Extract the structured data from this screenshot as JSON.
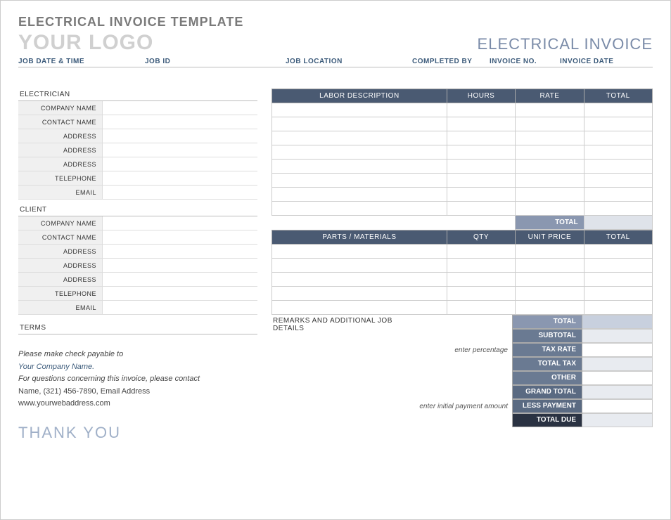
{
  "header_title": "ELECTRICAL INVOICE TEMPLATE",
  "logo_placeholder": "YOUR LOGO",
  "invoice_title": "ELECTRICAL INVOICE",
  "job_headers": {
    "date": "JOB DATE & TIME",
    "id": "JOB ID",
    "location": "JOB LOCATION",
    "completed": "COMPLETED BY",
    "invoice_no": "INVOICE NO.",
    "invoice_date": "INVOICE DATE"
  },
  "sections": {
    "electrician": "ELECTRICIAN",
    "client": "CLIENT",
    "terms": "TERMS"
  },
  "kv_labels": {
    "company": "COMPANY NAME",
    "contact": "CONTACT NAME",
    "address": "ADDRESS",
    "telephone": "TELEPHONE",
    "email": "EMAIL"
  },
  "labor_table": {
    "headers": {
      "desc": "LABOR DESCRIPTION",
      "hours": "HOURS",
      "rate": "RATE",
      "total": "TOTAL"
    },
    "rows": 8,
    "subtotal_label": "TOTAL"
  },
  "parts_table": {
    "headers": {
      "desc": "PARTS / MATERIALS",
      "qty": "QTY",
      "unit": "UNIT PRICE",
      "total": "TOTAL"
    },
    "rows": 5
  },
  "remarks_label": "REMARKS AND ADDITIONAL JOB DETAILS",
  "summary": {
    "total": "TOTAL",
    "subtotal": "SUBTOTAL",
    "tax_rate": "TAX RATE",
    "tax_rate_hint": "enter percentage",
    "total_tax": "TOTAL TAX",
    "other": "OTHER",
    "grand_total": "GRAND TOTAL",
    "less_payment": "LESS PAYMENT",
    "less_payment_hint": "enter initial payment amount",
    "total_due": "TOTAL DUE"
  },
  "footer": {
    "payable": "Please make check payable to",
    "company": "Your Company Name.",
    "questions": "For questions concerning this invoice, please contact",
    "contact": "Name, (321) 456-7890, Email Address",
    "web": "www.yourwebaddress.com",
    "thank_you": "THANK YOU"
  },
  "colors": {
    "header_bg": "#4a5a72",
    "sub_bg": "#8a97b0",
    "mid_bg": "#6a7a92",
    "dark_bg": "#2a3242"
  }
}
